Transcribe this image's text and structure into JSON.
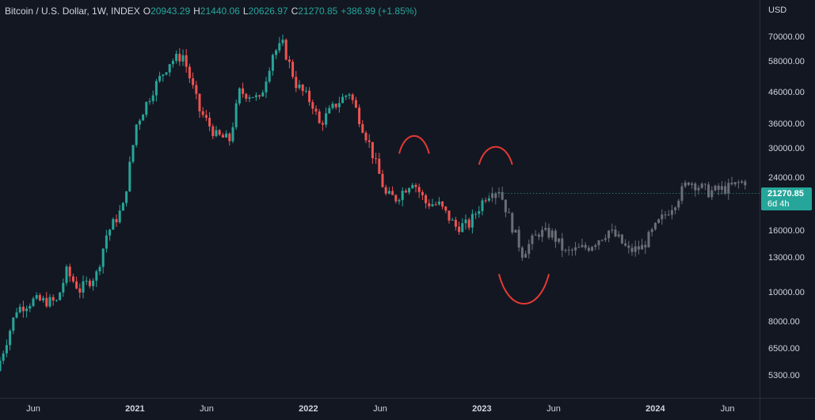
{
  "legend": {
    "symbol": "Bitcoin / U.S. Dollar, 1W, INDEX",
    "open_label": "O",
    "open": "20943.29",
    "high_label": "H",
    "high": "21440.06",
    "low_label": "L",
    "low": "20626.97",
    "close_label": "C",
    "close": "21270.85",
    "change": "+386.99 (+1.85%)"
  },
  "price_axis": {
    "currency": "USD",
    "ticks": [
      "70000.00",
      "58000.00",
      "46000.00",
      "36000.00",
      "30000.00",
      "24000.00",
      "16000.00",
      "13000.00",
      "10000.00",
      "8000.00",
      "6500.00",
      "5300.00"
    ]
  },
  "current_price": {
    "price": "21270.85",
    "countdown": "6d 4h"
  },
  "time_axis": {
    "labels": [
      "Jun",
      "2021",
      "Jun",
      "2022",
      "Jun",
      "2023",
      "Jun",
      "2024",
      "Jun"
    ]
  },
  "colors": {
    "background": "#131722",
    "up": "#26a69a",
    "down": "#ef5350",
    "projection": "#6b6e76",
    "annotation": "#e53935",
    "price_badge": "#26a69a"
  },
  "chart_data": {
    "type": "candlestick",
    "title": "Bitcoin / U.S. Dollar, 1W, INDEX",
    "y_scale": "log",
    "ylim": [
      4500,
      78000
    ],
    "x_ticks": [
      "Jun",
      "2021",
      "Jun",
      "2022",
      "Jun",
      "2023",
      "Jun",
      "2024",
      "Jun"
    ],
    "y_ticks": [
      70000,
      58000,
      46000,
      36000,
      30000,
      24000,
      16000,
      13000,
      10000,
      8000,
      6500,
      5300
    ],
    "grid": false,
    "series": [
      {
        "kind": "historical",
        "anchor_points": [
          [
            "2020-03-16",
            5500
          ],
          [
            "2020-04-27",
            8800
          ],
          [
            "2020-06-01",
            9400
          ],
          [
            "2020-07-20",
            9300
          ],
          [
            "2020-08-10",
            11700
          ],
          [
            "2020-09-07",
            10200
          ],
          [
            "2020-10-12",
            11500
          ],
          [
            "2020-11-02",
            15500
          ],
          [
            "2020-12-07",
            19200
          ],
          [
            "2021-01-04",
            36000
          ],
          [
            "2021-02-08",
            47000
          ],
          [
            "2021-03-15",
            58000
          ],
          [
            "2021-04-12",
            61000
          ],
          [
            "2021-05-17",
            40000
          ],
          [
            "2021-06-21",
            33000
          ],
          [
            "2021-07-19",
            32000
          ],
          [
            "2021-08-09",
            46000
          ],
          [
            "2021-09-06",
            45000
          ],
          [
            "2021-09-20",
            43000
          ],
          [
            "2021-10-18",
            62000
          ],
          [
            "2021-11-08",
            66000
          ],
          [
            "2021-12-06",
            49000
          ],
          [
            "2022-01-10",
            42000
          ],
          [
            "2022-01-24",
            36000
          ],
          [
            "2022-02-28",
            42000
          ],
          [
            "2022-03-28",
            46000
          ],
          [
            "2022-05-09",
            31000
          ],
          [
            "2022-06-13",
            21000
          ],
          [
            "2022-07-04",
            20500
          ],
          [
            "2022-08-08",
            23500
          ],
          [
            "2022-09-05",
            19800
          ],
          [
            "2022-10-03",
            19500
          ],
          [
            "2022-11-07",
            16500
          ],
          [
            "2022-12-05",
            16800
          ],
          [
            "2023-01-09",
            20900
          ],
          [
            "2023-01-16",
            21270
          ]
        ]
      },
      {
        "kind": "projection",
        "anchor_points": [
          [
            "2023-01-16",
            21270
          ],
          [
            "2023-02-06",
            22000
          ],
          [
            "2023-03-06",
            16500
          ],
          [
            "2023-03-27",
            13500
          ],
          [
            "2023-05-01",
            15800
          ],
          [
            "2023-05-29",
            15600
          ],
          [
            "2023-06-26",
            13500
          ],
          [
            "2023-08-14",
            14200
          ],
          [
            "2023-09-25",
            16000
          ],
          [
            "2023-10-16",
            15000
          ],
          [
            "2023-11-06",
            13700
          ],
          [
            "2023-12-04",
            14100
          ],
          [
            "2024-01-08",
            17000
          ],
          [
            "2024-02-12",
            20000
          ],
          [
            "2024-03-11",
            23500
          ],
          [
            "2024-04-22",
            21500
          ],
          [
            "2024-06-03",
            22200
          ],
          [
            "2024-07-08",
            23400
          ]
        ]
      }
    ],
    "annotations": [
      {
        "type": "arc",
        "direction": "up",
        "from": "2022-07-11",
        "to": "2022-09-12",
        "price": 28800
      },
      {
        "type": "arc",
        "direction": "up",
        "from": "2022-12-26",
        "to": "2023-03-06",
        "price": 26500
      },
      {
        "type": "arc",
        "direction": "down",
        "from": "2023-02-06",
        "to": "2023-05-22",
        "price": 11500
      }
    ],
    "last": {
      "open": 20943.29,
      "high": 21440.06,
      "low": 20626.97,
      "close": 21270.85,
      "change": 386.99,
      "change_pct": 1.85
    }
  }
}
